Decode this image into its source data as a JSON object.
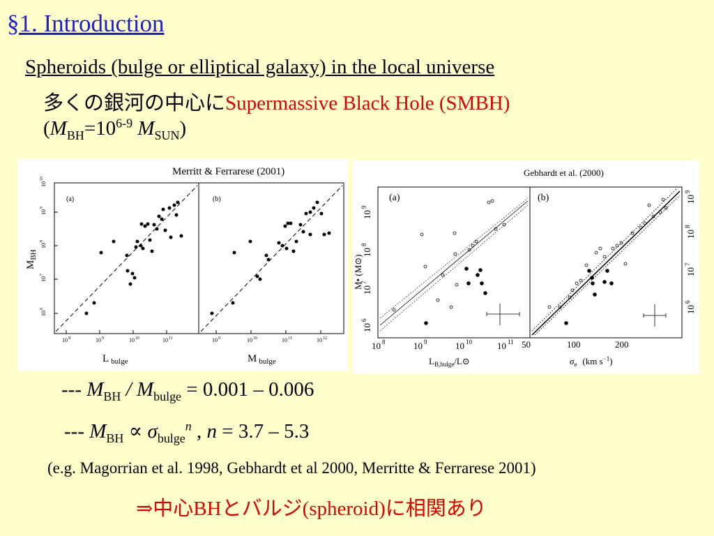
{
  "title": "§1. Introduction",
  "subtitle": "Spheroids (bulge or elliptical galaxy) in the local universe",
  "line2_jp": "多くの銀河の中心に",
  "line2_red": "Supermassive Black Hole (SMBH)",
  "line3": {
    "open": "(",
    "m": "M",
    "bh": "BH",
    "eq": "=10",
    "exp": "6-9",
    "m2": "M",
    "sun": "SUN",
    "close": ")"
  },
  "figure1": {
    "caption": "Merritt & Ferrarese (2001)",
    "ylabel_main": "M",
    "ylabel_sub": "BH",
    "panel_a_label": "(a)",
    "panel_b_label": "(b)",
    "xlabel_a_main": "L",
    "xlabel_a_sub": "bulge",
    "xlabel_b_main": "M",
    "xlabel_b_sub": "bulge",
    "yticks": [
      "10",
      "10",
      "10",
      "10",
      "10"
    ],
    "yticks_exp": [
      "6",
      "7",
      "8",
      "9",
      "10"
    ],
    "xticks_a": [
      "10",
      "10",
      "10",
      "10"
    ],
    "xticks_a_exp": [
      "8",
      "9",
      "10",
      "11"
    ],
    "xticks_b": [
      "10",
      "10",
      "10",
      "10"
    ],
    "xticks_b_exp": [
      "9",
      "10",
      "11",
      "12"
    ]
  },
  "figure2": {
    "caption": "Gebhardt et al. (2000)",
    "panel_a_label": "(a)",
    "panel_b_label": "(b)",
    "ylabel": "M• (M⊙)",
    "xlabel_a": "L",
    "xlabel_a_sub": "B,bulge",
    "xlabel_a_tail": "/L⊙",
    "xlabel_b": "σ",
    "xlabel_b_sub": "e",
    "xlabel_b_tail": "(km s",
    "xlabel_b_exp": "−1",
    "xlabel_b_close": ")",
    "yticks": [
      "10",
      "10",
      "10",
      "10"
    ],
    "yticks_exp": [
      "6",
      "7",
      "8",
      "9"
    ],
    "xticks_a": [
      "10",
      "10",
      "10",
      "10"
    ],
    "xticks_a_exp": [
      "8",
      "9",
      "10",
      "11"
    ],
    "xticks_b": [
      "50",
      "100",
      "200"
    ]
  },
  "eq1": {
    "dash": "--- ",
    "m": "M",
    "bh": "BH",
    "slash": " / ",
    "m2": "M",
    "bulge": "bulge",
    "rest": " = 0.001 – 0.006"
  },
  "eq2": {
    "dash": "--- ",
    "m": "M",
    "bh": "BH",
    "prop": " ∝ ",
    "sigma": "σ",
    "bulge": "bulge",
    "n": "n",
    "comma": " , ",
    "n2": "n",
    "rest": " =  3.7 – 5.3"
  },
  "refs": "(e.g. Magorrian et al. 1998, Gebhardt et al 2000, Merritte & Ferrarese 2001)",
  "conclusion": "⇒中心BHとバルジ(spheroid)に相関あり"
}
